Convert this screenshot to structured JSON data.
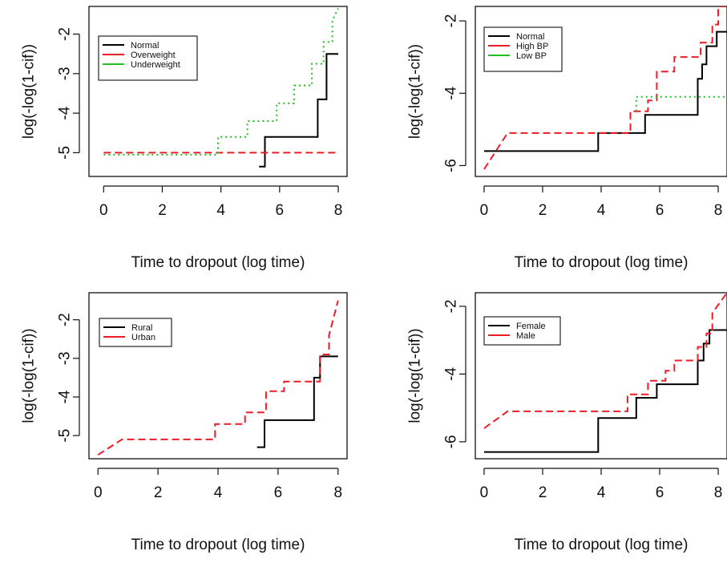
{
  "chart_data": [
    {
      "type": "line",
      "step": true,
      "xlabel": "Time to dropout (log time)",
      "ylabel": "log(-log(1-cif))",
      "xlim": [
        -0.5,
        8.3
      ],
      "ylim": [
        -5.6,
        -1.3
      ],
      "xticks": [
        0,
        2,
        4,
        6,
        8
      ],
      "yticks": [
        -5,
        -4,
        -3,
        -2
      ],
      "legend_position": "top-left",
      "series": [
        {
          "name": "Normal",
          "color": "#000000",
          "dash": "solid",
          "x": [
            5.3,
            5.5,
            5.5,
            7.3,
            7.3,
            7.6,
            7.6,
            8.0
          ],
          "y": [
            -5.35,
            -5.35,
            -4.6,
            -4.6,
            -3.65,
            -3.65,
            -2.5,
            -2.5
          ]
        },
        {
          "name": "Overweight",
          "color": "#ee1c25",
          "dash": "dashed",
          "x": [
            0.0,
            8.0
          ],
          "y": [
            -5.0,
            -5.0
          ]
        },
        {
          "name": "Underweight",
          "color": "#22c022",
          "dash": "dotted",
          "x": [
            0.0,
            3.9,
            3.9,
            4.9,
            4.9,
            5.9,
            5.9,
            6.5,
            6.5,
            7.1,
            7.1,
            7.5,
            7.5,
            7.8,
            7.8,
            8.0
          ],
          "y": [
            -5.05,
            -5.05,
            -4.6,
            -4.6,
            -4.2,
            -4.2,
            -3.75,
            -3.75,
            -3.3,
            -3.3,
            -2.75,
            -2.75,
            -2.2,
            -2.2,
            -1.65,
            -1.35
          ]
        }
      ]
    },
    {
      "type": "line",
      "step": true,
      "xlabel": "Time to dropout (log time)",
      "ylabel": "log(-log(1-cif))",
      "xlim": [
        -0.3,
        8.3
      ],
      "ylim": [
        -6.3,
        -1.6
      ],
      "xticks": [
        0,
        2,
        4,
        6,
        8
      ],
      "yticks": [
        -6,
        -4,
        -2
      ],
      "legend_position": "top-left",
      "series": [
        {
          "name": "Normal",
          "color": "#000000",
          "dash": "solid",
          "x": [
            0.0,
            3.9,
            3.9,
            5.5,
            5.5,
            7.3,
            7.3,
            7.45,
            7.45,
            7.6,
            7.6,
            7.95,
            7.95,
            8.3
          ],
          "y": [
            -5.6,
            -5.6,
            -5.1,
            -5.1,
            -4.6,
            -4.6,
            -3.6,
            -3.6,
            -3.2,
            -3.2,
            -2.7,
            -2.7,
            -2.3,
            -2.3
          ]
        },
        {
          "name": "High BP",
          "color": "#ee1c25",
          "dash": "dashed",
          "x": [
            0.0,
            0.8,
            5.0,
            5.0,
            5.6,
            5.6,
            5.9,
            5.9,
            6.5,
            6.5,
            7.4,
            7.4,
            7.8,
            7.8,
            8.0,
            8.0,
            8.3
          ],
          "y": [
            -6.1,
            -5.1,
            -5.1,
            -4.5,
            -4.5,
            -4.2,
            -4.2,
            -3.4,
            -3.4,
            -3.0,
            -3.0,
            -2.6,
            -2.6,
            -2.1,
            -2.1,
            -1.6,
            -1.6
          ]
        },
        {
          "name": "Low BP",
          "color": "#22c022",
          "dash": "dotted",
          "x": [
            5.2,
            5.2,
            8.3
          ],
          "y": [
            -4.5,
            -4.1,
            -4.1
          ]
        }
      ]
    },
    {
      "type": "line",
      "step": true,
      "xlabel": "Time to dropout (log time)",
      "ylabel": "log(-log(1-cif))",
      "xlim": [
        -0.3,
        8.3
      ],
      "ylim": [
        -5.6,
        -1.3
      ],
      "xticks": [
        0,
        2,
        4,
        6,
        8
      ],
      "yticks": [
        -5,
        -4,
        -3,
        -2
      ],
      "legend_position": "top-left",
      "series": [
        {
          "name": "Rural",
          "color": "#000000",
          "dash": "solid",
          "x": [
            5.3,
            5.55,
            5.55,
            7.2,
            7.2,
            7.4,
            7.4,
            8.0
          ],
          "y": [
            -5.3,
            -5.3,
            -4.6,
            -4.6,
            -3.5,
            -3.5,
            -2.95,
            -2.95
          ]
        },
        {
          "name": "Urban",
          "color": "#ee1c25",
          "dash": "dashed",
          "x": [
            0.0,
            0.8,
            3.9,
            3.9,
            4.9,
            4.9,
            5.6,
            5.6,
            6.2,
            6.2,
            7.4,
            7.4,
            7.7,
            7.7,
            8.0
          ],
          "y": [
            -5.5,
            -5.1,
            -5.1,
            -4.7,
            -4.7,
            -4.4,
            -4.4,
            -3.85,
            -3.85,
            -3.6,
            -3.6,
            -2.9,
            -2.9,
            -2.4,
            -1.5
          ]
        }
      ]
    },
    {
      "type": "line",
      "step": true,
      "xlabel": "Time to dropout (log time)",
      "ylabel": "log(-log(1-cif))",
      "xlim": [
        -0.3,
        8.3
      ],
      "ylim": [
        -6.5,
        -1.6
      ],
      "xticks": [
        0,
        2,
        4,
        6,
        8
      ],
      "yticks": [
        -6,
        -4,
        -2
      ],
      "legend_position": "top-left",
      "series": [
        {
          "name": "Female",
          "color": "#000000",
          "dash": "solid",
          "x": [
            0.0,
            3.9,
            3.9,
            5.2,
            5.2,
            5.9,
            5.9,
            7.3,
            7.3,
            7.5,
            7.5,
            7.7,
            7.7,
            8.3
          ],
          "y": [
            -6.3,
            -6.3,
            -5.3,
            -5.3,
            -4.7,
            -4.7,
            -4.3,
            -4.3,
            -3.6,
            -3.6,
            -3.1,
            -3.1,
            -2.7,
            -2.7
          ]
        },
        {
          "name": "Male",
          "color": "#ee1c25",
          "dash": "dashed",
          "x": [
            0.0,
            0.8,
            4.9,
            4.9,
            5.6,
            5.6,
            6.2,
            6.2,
            6.5,
            6.5,
            7.3,
            7.3,
            7.6,
            7.6,
            7.8,
            7.8,
            8.3
          ],
          "y": [
            -5.6,
            -5.1,
            -5.1,
            -4.6,
            -4.6,
            -4.2,
            -4.2,
            -3.9,
            -3.9,
            -3.6,
            -3.6,
            -3.2,
            -3.2,
            -2.8,
            -2.8,
            -2.2,
            -1.6
          ]
        }
      ]
    }
  ]
}
